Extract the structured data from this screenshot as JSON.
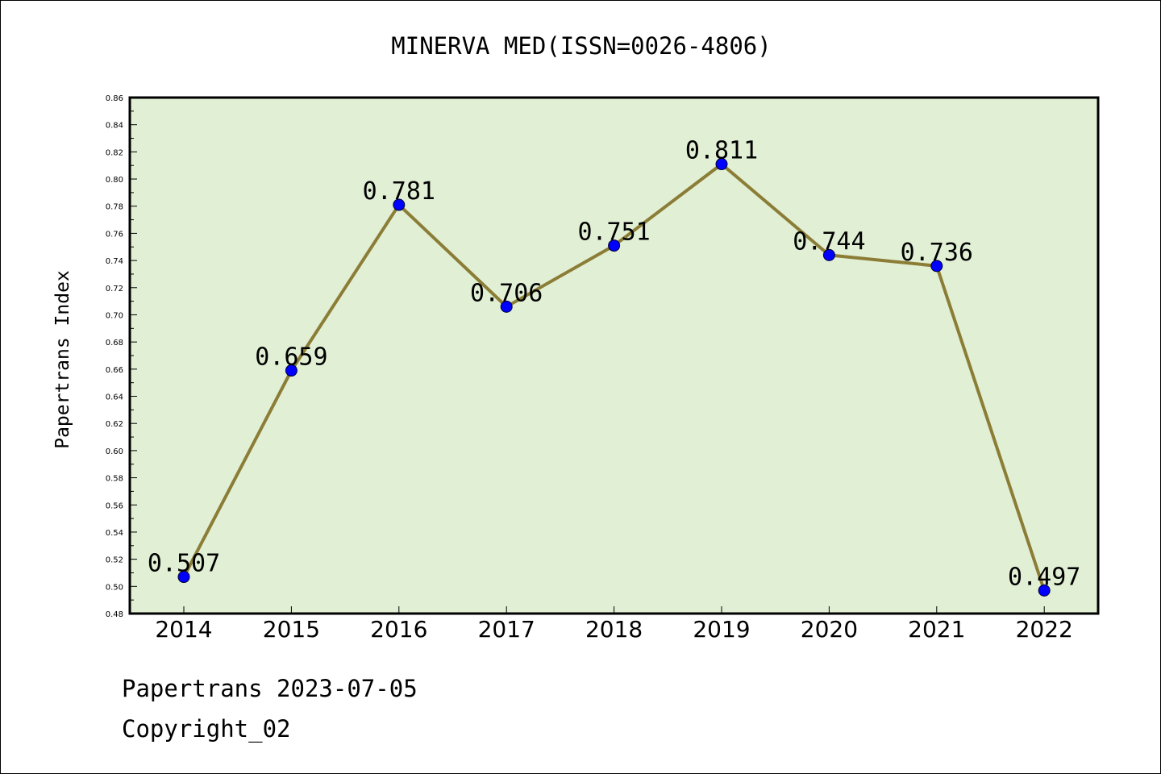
{
  "chart_data": {
    "type": "line",
    "title": "MINERVA MED(ISSN=0026-4806)",
    "ylabel": "Papertrans Index",
    "xlabel": "",
    "categories": [
      "2014",
      "2015",
      "2016",
      "2017",
      "2018",
      "2019",
      "2020",
      "2021",
      "2022"
    ],
    "values": [
      0.507,
      0.659,
      0.781,
      0.706,
      0.751,
      0.811,
      0.744,
      0.736,
      0.497
    ],
    "data_labels": [
      "0.507",
      "0.659",
      "0.781",
      "0.706",
      "0.751",
      "0.811",
      "0.744",
      "0.736",
      "0.497"
    ],
    "ylim": [
      0.48,
      0.86
    ],
    "yticks": [
      "0.48",
      "0.50",
      "0.52",
      "0.54",
      "0.56",
      "0.58",
      "0.60",
      "0.62",
      "0.64",
      "0.66",
      "0.68",
      "0.70",
      "0.72",
      "0.74",
      "0.76",
      "0.78",
      "0.80",
      "0.82",
      "0.84",
      "0.86"
    ],
    "grid": false,
    "legend": "none",
    "colors": {
      "plot_background": "#e1efd5",
      "line": "#8b7d36",
      "marker": "#0000ff",
      "axis": "#000000"
    }
  },
  "footer": {
    "line1": "Papertrans 2023-07-05",
    "line2": "Copyright_02"
  }
}
